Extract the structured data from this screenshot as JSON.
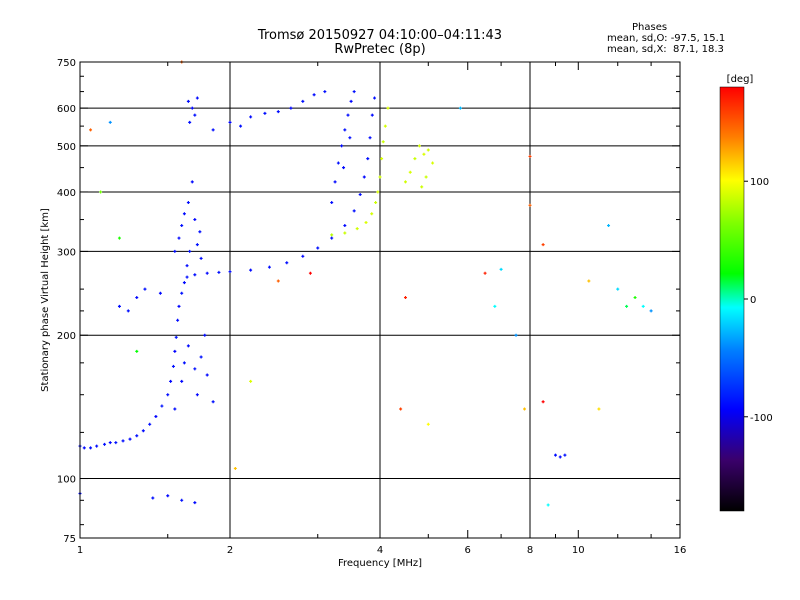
{
  "header": {
    "title_line1": "Tromsø 20150927 04:10:00–04:11:43",
    "title_line2": "RwPretec (8p)"
  },
  "stats": {
    "heading": "Phases",
    "o_mode": "mean, sd,O: -97.5, 15.1",
    "x_mode": "mean, sd,X:  87.1, 18.3"
  },
  "colorbar": {
    "unit_label": "[deg]",
    "ticks": [
      {
        "value": 100,
        "label": "100"
      },
      {
        "value": 0,
        "label": "0"
      },
      {
        "value": -100,
        "label": "-100"
      }
    ],
    "range": [
      -180,
      180
    ]
  },
  "chart_data": {
    "type": "scatter",
    "title": "Tromsø 20150927 04:10:00–04:11:43",
    "subtitle": "RwPretec (8p)",
    "xlabel": "Frequency [MHz]",
    "ylabel": "Stationary phase Virtual Height [km]",
    "x_scale": "log",
    "y_scale": "log",
    "xlim": [
      1,
      16
    ],
    "ylim": [
      75,
      750
    ],
    "grid": true,
    "x_ticks": [
      1,
      2,
      4,
      6,
      8,
      10,
      16
    ],
    "x_tick_labels": [
      "1",
      "2",
      "4",
      "6",
      "8",
      "10",
      "16"
    ],
    "x_minor_ticks": [
      1.5,
      3,
      5,
      7,
      9,
      12,
      14
    ],
    "y_ticks": [
      75,
      100,
      200,
      300,
      400,
      500,
      600,
      750
    ],
    "y_tick_labels": [
      "75",
      "100",
      "200",
      "300",
      "400",
      "500",
      "600",
      "750"
    ],
    "y_minor_ticks": [
      80,
      90,
      125,
      150,
      175,
      225,
      250,
      350,
      450,
      550,
      650,
      700
    ],
    "grid_x": [
      2,
      4,
      8
    ],
    "grid_y": [
      100,
      200,
      300,
      400,
      500,
      600
    ],
    "color_scale": {
      "min": -180,
      "max": 180,
      "label": "[deg]"
    },
    "series": [
      {
        "mode": "O",
        "description_points": "frequency MHz, virtual height km, phase deg",
        "points": [
          [
            1.0,
            117,
            -100
          ],
          [
            1.02,
            116,
            -102
          ],
          [
            1.05,
            116,
            -98
          ],
          [
            1.08,
            117,
            -101
          ],
          [
            1.12,
            118,
            -99
          ],
          [
            1.15,
            119,
            -103
          ],
          [
            1.18,
            119,
            -97
          ],
          [
            1.22,
            120,
            -100
          ],
          [
            1.26,
            121,
            -102
          ],
          [
            1.3,
            123,
            -98
          ],
          [
            1.34,
            126,
            -101
          ],
          [
            1.38,
            130,
            -99
          ],
          [
            1.42,
            135,
            -104
          ],
          [
            1.46,
            142,
            -96
          ],
          [
            1.5,
            150,
            -100
          ],
          [
            1.52,
            160,
            -102
          ],
          [
            1.54,
            172,
            -98
          ],
          [
            1.55,
            185,
            -105
          ],
          [
            1.56,
            198,
            -95
          ],
          [
            1.57,
            215,
            -100
          ],
          [
            1.58,
            230,
            -103
          ],
          [
            1.6,
            245,
            -97
          ],
          [
            1.62,
            258,
            -101
          ],
          [
            1.64,
            265,
            -99
          ],
          [
            1.7,
            268,
            -100
          ],
          [
            1.8,
            270,
            -102
          ],
          [
            1.9,
            271,
            -98
          ],
          [
            2.0,
            272,
            -100
          ],
          [
            2.2,
            274,
            -101
          ],
          [
            2.4,
            278,
            -99
          ],
          [
            2.6,
            284,
            -100
          ],
          [
            2.8,
            293,
            -102
          ],
          [
            3.0,
            305,
            -98
          ],
          [
            3.2,
            320,
            -100
          ],
          [
            3.4,
            340,
            -101
          ],
          [
            3.55,
            365,
            -99
          ],
          [
            3.65,
            395,
            -100
          ],
          [
            3.72,
            430,
            -102
          ],
          [
            3.78,
            470,
            -98
          ],
          [
            3.82,
            520,
            -100
          ],
          [
            3.86,
            580,
            -101
          ],
          [
            3.9,
            630,
            -99
          ],
          [
            1.55,
            300,
            -100
          ],
          [
            1.58,
            320,
            -102
          ],
          [
            1.6,
            340,
            -98
          ],
          [
            1.62,
            360,
            -101
          ],
          [
            1.65,
            380,
            -99
          ],
          [
            1.7,
            350,
            -103
          ],
          [
            1.72,
            310,
            -97
          ],
          [
            1.75,
            290,
            -100
          ],
          [
            1.68,
            420,
            -102
          ],
          [
            1.66,
            300,
            -98
          ],
          [
            1.64,
            280,
            -101
          ],
          [
            1.74,
            330,
            -99
          ],
          [
            1.55,
            140,
            -100
          ],
          [
            1.6,
            160,
            -102
          ],
          [
            1.62,
            175,
            -98
          ],
          [
            1.65,
            190,
            -101
          ],
          [
            1.7,
            170,
            -99
          ],
          [
            1.72,
            150,
            -103
          ],
          [
            1.75,
            180,
            -97
          ],
          [
            1.78,
            200,
            -100
          ],
          [
            1.8,
            165,
            -102
          ],
          [
            1.85,
            145,
            -98
          ],
          [
            1.65,
            620,
            -100
          ],
          [
            1.68,
            600,
            -102
          ],
          [
            1.7,
            580,
            -98
          ],
          [
            1.72,
            630,
            -101
          ],
          [
            1.66,
            560,
            -99
          ],
          [
            1.85,
            540,
            -100
          ],
          [
            2.0,
            560,
            -102
          ],
          [
            2.1,
            550,
            -98
          ],
          [
            2.2,
            575,
            -101
          ],
          [
            2.35,
            585,
            -99
          ],
          [
            2.5,
            590,
            -100
          ],
          [
            2.65,
            600,
            -102
          ],
          [
            2.8,
            620,
            -98
          ],
          [
            2.95,
            640,
            -101
          ],
          [
            3.1,
            650,
            -99
          ],
          [
            3.2,
            380,
            -100
          ],
          [
            3.25,
            420,
            -102
          ],
          [
            3.3,
            460,
            -98
          ],
          [
            3.35,
            500,
            -101
          ],
          [
            3.4,
            540,
            -99
          ],
          [
            3.45,
            580,
            -100
          ],
          [
            3.5,
            620,
            -102
          ],
          [
            3.55,
            650,
            -98
          ],
          [
            3.38,
            450,
            -101
          ],
          [
            3.48,
            520,
            -99
          ],
          [
            1.2,
            230,
            -100
          ],
          [
            1.3,
            240,
            -102
          ],
          [
            1.35,
            250,
            -98
          ],
          [
            1.45,
            245,
            -101
          ],
          [
            1.25,
            225,
            -99
          ],
          [
            1.0,
            93,
            -100
          ],
          [
            1.5,
            92,
            -102
          ],
          [
            1.6,
            90,
            -98
          ],
          [
            1.7,
            89,
            -101
          ],
          [
            1.4,
            91,
            -99
          ],
          [
            9.0,
            112,
            -100
          ],
          [
            9.2,
            111,
            -102
          ],
          [
            9.4,
            112,
            -98
          ]
        ]
      },
      {
        "mode": "X",
        "description_points": "frequency MHz, virtual height km, phase deg",
        "points": [
          [
            3.2,
            325,
            80
          ],
          [
            3.4,
            328,
            85
          ],
          [
            3.6,
            335,
            87
          ],
          [
            3.75,
            345,
            90
          ],
          [
            3.85,
            360,
            88
          ],
          [
            3.92,
            380,
            86
          ],
          [
            3.96,
            400,
            90
          ],
          [
            4.0,
            430,
            87
          ],
          [
            4.03,
            470,
            89
          ],
          [
            4.06,
            510,
            85
          ],
          [
            4.1,
            550,
            88
          ],
          [
            4.15,
            600,
            90
          ],
          [
            4.5,
            420,
            87
          ],
          [
            4.6,
            440,
            89
          ],
          [
            4.7,
            470,
            85
          ],
          [
            4.8,
            500,
            88
          ],
          [
            4.9,
            480,
            90
          ],
          [
            4.85,
            410,
            86
          ],
          [
            5.0,
            490,
            87
          ],
          [
            5.1,
            460,
            89
          ],
          [
            4.95,
            430,
            85
          ]
        ]
      },
      {
        "mode": "scatter",
        "description_points": "frequency MHz, virtual height km, phase deg",
        "points": [
          [
            1.1,
            400,
            60
          ],
          [
            1.15,
            560,
            -40
          ],
          [
            1.05,
            540,
            150
          ],
          [
            1.2,
            320,
            30
          ],
          [
            1.3,
            185,
            20
          ],
          [
            2.05,
            105,
            120
          ],
          [
            2.2,
            160,
            90
          ],
          [
            2.5,
            260,
            150
          ],
          [
            2.9,
            270,
            180
          ],
          [
            4.4,
            140,
            160
          ],
          [
            4.5,
            240,
            170
          ],
          [
            5.0,
            130,
            100
          ],
          [
            5.8,
            600,
            -30
          ],
          [
            6.5,
            270,
            170
          ],
          [
            6.8,
            230,
            -10
          ],
          [
            7.0,
            275,
            -20
          ],
          [
            7.5,
            200,
            -40
          ],
          [
            7.8,
            140,
            120
          ],
          [
            8.0,
            475,
            160
          ],
          [
            8.0,
            375,
            150
          ],
          [
            8.5,
            310,
            160
          ],
          [
            8.5,
            145,
            180
          ],
          [
            8.7,
            88,
            -10
          ],
          [
            10.5,
            260,
            120
          ],
          [
            11.0,
            140,
            110
          ],
          [
            11.5,
            340,
            -30
          ],
          [
            12.0,
            250,
            -20
          ],
          [
            12.5,
            230,
            10
          ],
          [
            13.0,
            240,
            30
          ],
          [
            13.5,
            230,
            -10
          ],
          [
            14.0,
            225,
            -40
          ],
          [
            1.6,
            750,
            150
          ]
        ]
      }
    ]
  }
}
